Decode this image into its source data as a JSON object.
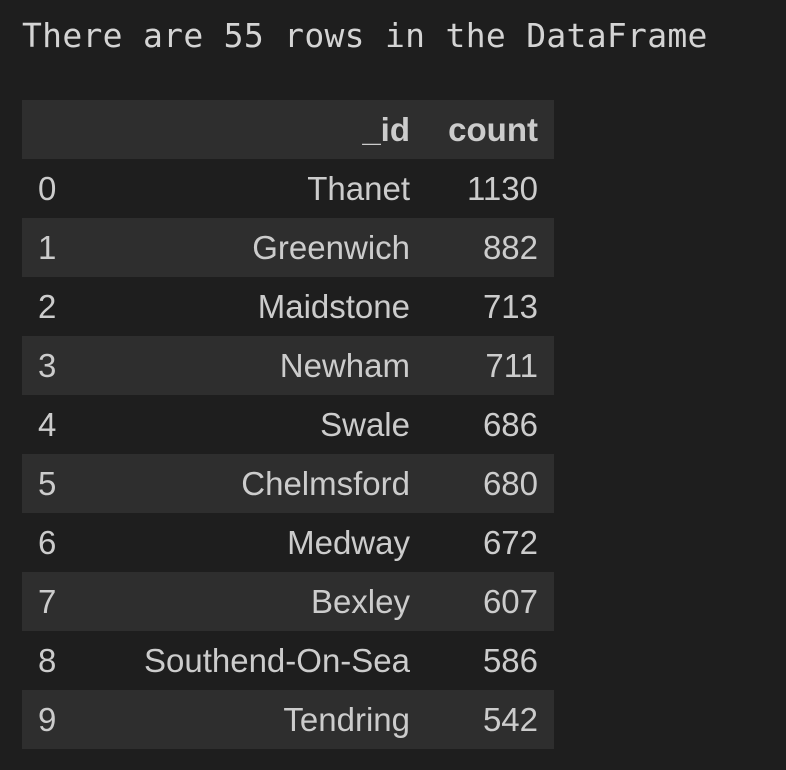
{
  "stdout_text": "There are 55 rows in the DataFrame",
  "table": {
    "index_header": "",
    "columns": [
      "_id",
      "count"
    ],
    "rows": [
      {
        "index": "0",
        "_id": "Thanet",
        "count": "1130"
      },
      {
        "index": "1",
        "_id": "Greenwich",
        "count": "882"
      },
      {
        "index": "2",
        "_id": "Maidstone",
        "count": "713"
      },
      {
        "index": "3",
        "_id": "Newham",
        "count": "711"
      },
      {
        "index": "4",
        "_id": "Swale",
        "count": "686"
      },
      {
        "index": "5",
        "_id": "Chelmsford",
        "count": "680"
      },
      {
        "index": "6",
        "_id": "Medway",
        "count": "672"
      },
      {
        "index": "7",
        "_id": "Bexley",
        "count": "607"
      },
      {
        "index": "8",
        "_id": "Southend-On-Sea",
        "count": "586"
      },
      {
        "index": "9",
        "_id": "Tendring",
        "count": "542"
      }
    ]
  },
  "colors": {
    "background": "#1e1e1e",
    "stripe": "#2e2e2e",
    "text": "#cccccc"
  }
}
